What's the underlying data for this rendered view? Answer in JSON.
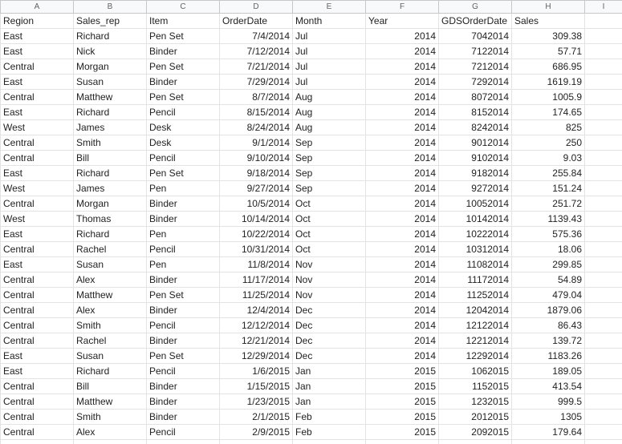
{
  "sheet": {
    "column_letters": [
      "A",
      "B",
      "C",
      "D",
      "E",
      "F",
      "G",
      "H",
      "I"
    ],
    "headers": [
      "Region",
      "Sales_rep",
      "Item",
      "OrderDate",
      "Month",
      "Year",
      "GDSOrderDate",
      "Sales"
    ],
    "rows": [
      [
        "East",
        "Richard",
        "Pen Set",
        "7/4/2014",
        "Jul",
        "2014",
        "7042014",
        "309.38"
      ],
      [
        "East",
        "Nick",
        "Binder",
        "7/12/2014",
        "Jul",
        "2014",
        "7122014",
        "57.71"
      ],
      [
        "Central",
        "Morgan",
        "Pen Set",
        "7/21/2014",
        "Jul",
        "2014",
        "7212014",
        "686.95"
      ],
      [
        "East",
        "Susan",
        "Binder",
        "7/29/2014",
        "Jul",
        "2014",
        "7292014",
        "1619.19"
      ],
      [
        "Central",
        "Matthew",
        "Pen Set",
        "8/7/2014",
        "Aug",
        "2014",
        "8072014",
        "1005.9"
      ],
      [
        "East",
        "Richard",
        "Pencil",
        "8/15/2014",
        "Aug",
        "2014",
        "8152014",
        "174.65"
      ],
      [
        "West",
        "James",
        "Desk",
        "8/24/2014",
        "Aug",
        "2014",
        "8242014",
        "825"
      ],
      [
        "Central",
        "Smith",
        "Desk",
        "9/1/2014",
        "Sep",
        "2014",
        "9012014",
        "250"
      ],
      [
        "Central",
        "Bill",
        "Pencil",
        "9/10/2014",
        "Sep",
        "2014",
        "9102014",
        "9.03"
      ],
      [
        "East",
        "Richard",
        "Pen Set",
        "9/18/2014",
        "Sep",
        "2014",
        "9182014",
        "255.84"
      ],
      [
        "West",
        "James",
        "Pen",
        "9/27/2014",
        "Sep",
        "2014",
        "9272014",
        "151.24"
      ],
      [
        "Central",
        "Morgan",
        "Binder",
        "10/5/2014",
        "Oct",
        "2014",
        "10052014",
        "251.72"
      ],
      [
        "West",
        "Thomas",
        "Binder",
        "10/14/2014",
        "Oct",
        "2014",
        "10142014",
        "1139.43"
      ],
      [
        "East",
        "Richard",
        "Pen",
        "10/22/2014",
        "Oct",
        "2014",
        "10222014",
        "575.36"
      ],
      [
        "Central",
        "Rachel",
        "Pencil",
        "10/31/2014",
        "Oct",
        "2014",
        "10312014",
        "18.06"
      ],
      [
        "East",
        "Susan",
        "Pen",
        "11/8/2014",
        "Nov",
        "2014",
        "11082014",
        "299.85"
      ],
      [
        "Central",
        "Alex",
        "Binder",
        "11/17/2014",
        "Nov",
        "2014",
        "11172014",
        "54.89"
      ],
      [
        "Central",
        "Matthew",
        "Pen Set",
        "11/25/2014",
        "Nov",
        "2014",
        "11252014",
        "479.04"
      ],
      [
        "Central",
        "Alex",
        "Binder",
        "12/4/2014",
        "Dec",
        "2014",
        "12042014",
        "1879.06"
      ],
      [
        "Central",
        "Smith",
        "Pencil",
        "12/12/2014",
        "Dec",
        "2014",
        "12122014",
        "86.43"
      ],
      [
        "Central",
        "Rachel",
        "Binder",
        "12/21/2014",
        "Dec",
        "2014",
        "12212014",
        "139.72"
      ],
      [
        "East",
        "Susan",
        "Pen Set",
        "12/29/2014",
        "Dec",
        "2014",
        "12292014",
        "1183.26"
      ],
      [
        "East",
        "Richard",
        "Pencil",
        "1/6/2015",
        "Jan",
        "2015",
        "1062015",
        "189.05"
      ],
      [
        "Central",
        "Bill",
        "Binder",
        "1/15/2015",
        "Jan",
        "2015",
        "1152015",
        "413.54"
      ],
      [
        "Central",
        "Matthew",
        "Binder",
        "1/23/2015",
        "Jan",
        "2015",
        "1232015",
        "999.5"
      ],
      [
        "Central",
        "Smith",
        "Binder",
        "2/1/2015",
        "Feb",
        "2015",
        "2012015",
        "1305"
      ],
      [
        "Central",
        "Alex",
        "Pencil",
        "2/9/2015",
        "Feb",
        "2015",
        "2092015",
        "179.64"
      ]
    ]
  }
}
